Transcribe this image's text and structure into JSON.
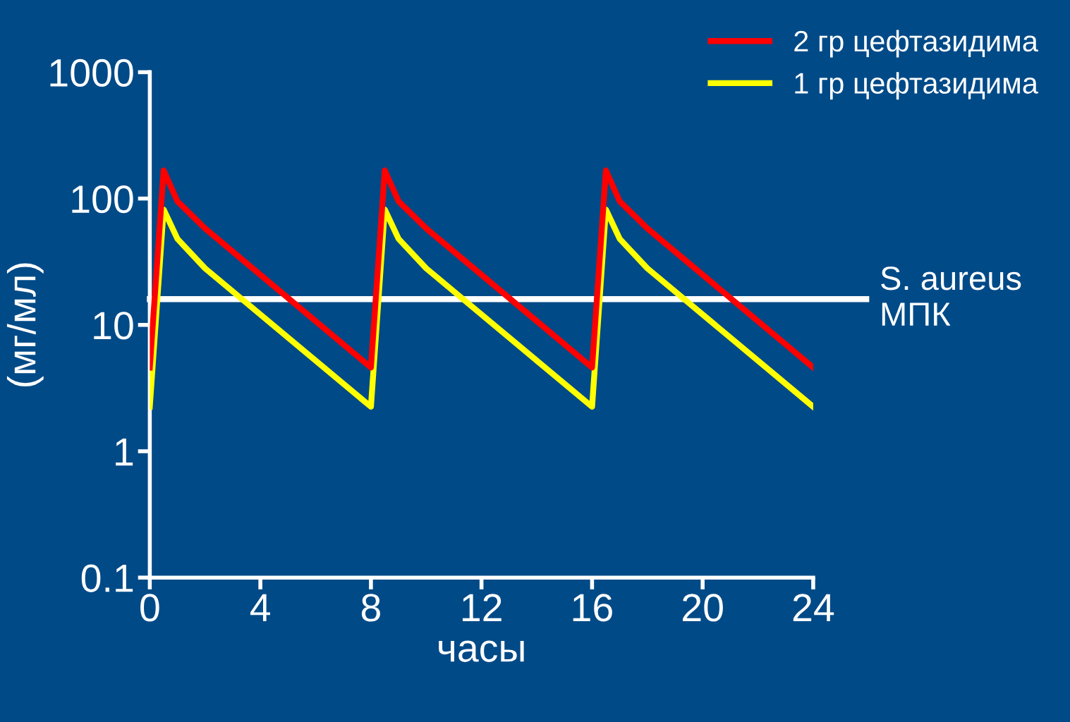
{
  "chart_data": {
    "type": "line",
    "ylabel": "(мг/мл)",
    "xlabel": "часы",
    "log": "y",
    "grid": false,
    "legend": "top right",
    "line_style": "solid",
    "marker": "none",
    "xlim": [
      0,
      24
    ],
    "xticks": [
      0,
      4,
      8,
      12,
      16,
      20,
      24
    ],
    "ylim": [
      0.1,
      1000
    ],
    "yticks": [
      0.1,
      1,
      10,
      100,
      1000
    ],
    "series": [
      {
        "name": "2 гр цефтазидима",
        "color": "#ff0000",
        "x": [
          0,
          0.5,
          1,
          2,
          8,
          8.5,
          9,
          10,
          16,
          16.5,
          17,
          18,
          24
        ],
        "values": [
          4.6,
          167,
          95,
          58,
          4.6,
          167,
          95,
          58,
          4.6,
          167,
          95,
          58,
          4.6
        ]
      },
      {
        "name": "1 гр цефтазидима",
        "color": "#ffff00",
        "x": [
          0,
          0.5,
          1,
          2,
          8,
          8.5,
          9,
          10,
          16,
          16.5,
          17,
          18,
          24
        ],
        "values": [
          2.25,
          82,
          48,
          28,
          2.25,
          82,
          48,
          28,
          2.25,
          82,
          48,
          28,
          2.25
        ]
      }
    ],
    "ref_lines": [
      {
        "axis": "y",
        "value": 16,
        "label": "S. aureus МПК",
        "color": "#ffffff",
        "line_style": "solid"
      }
    ]
  }
}
